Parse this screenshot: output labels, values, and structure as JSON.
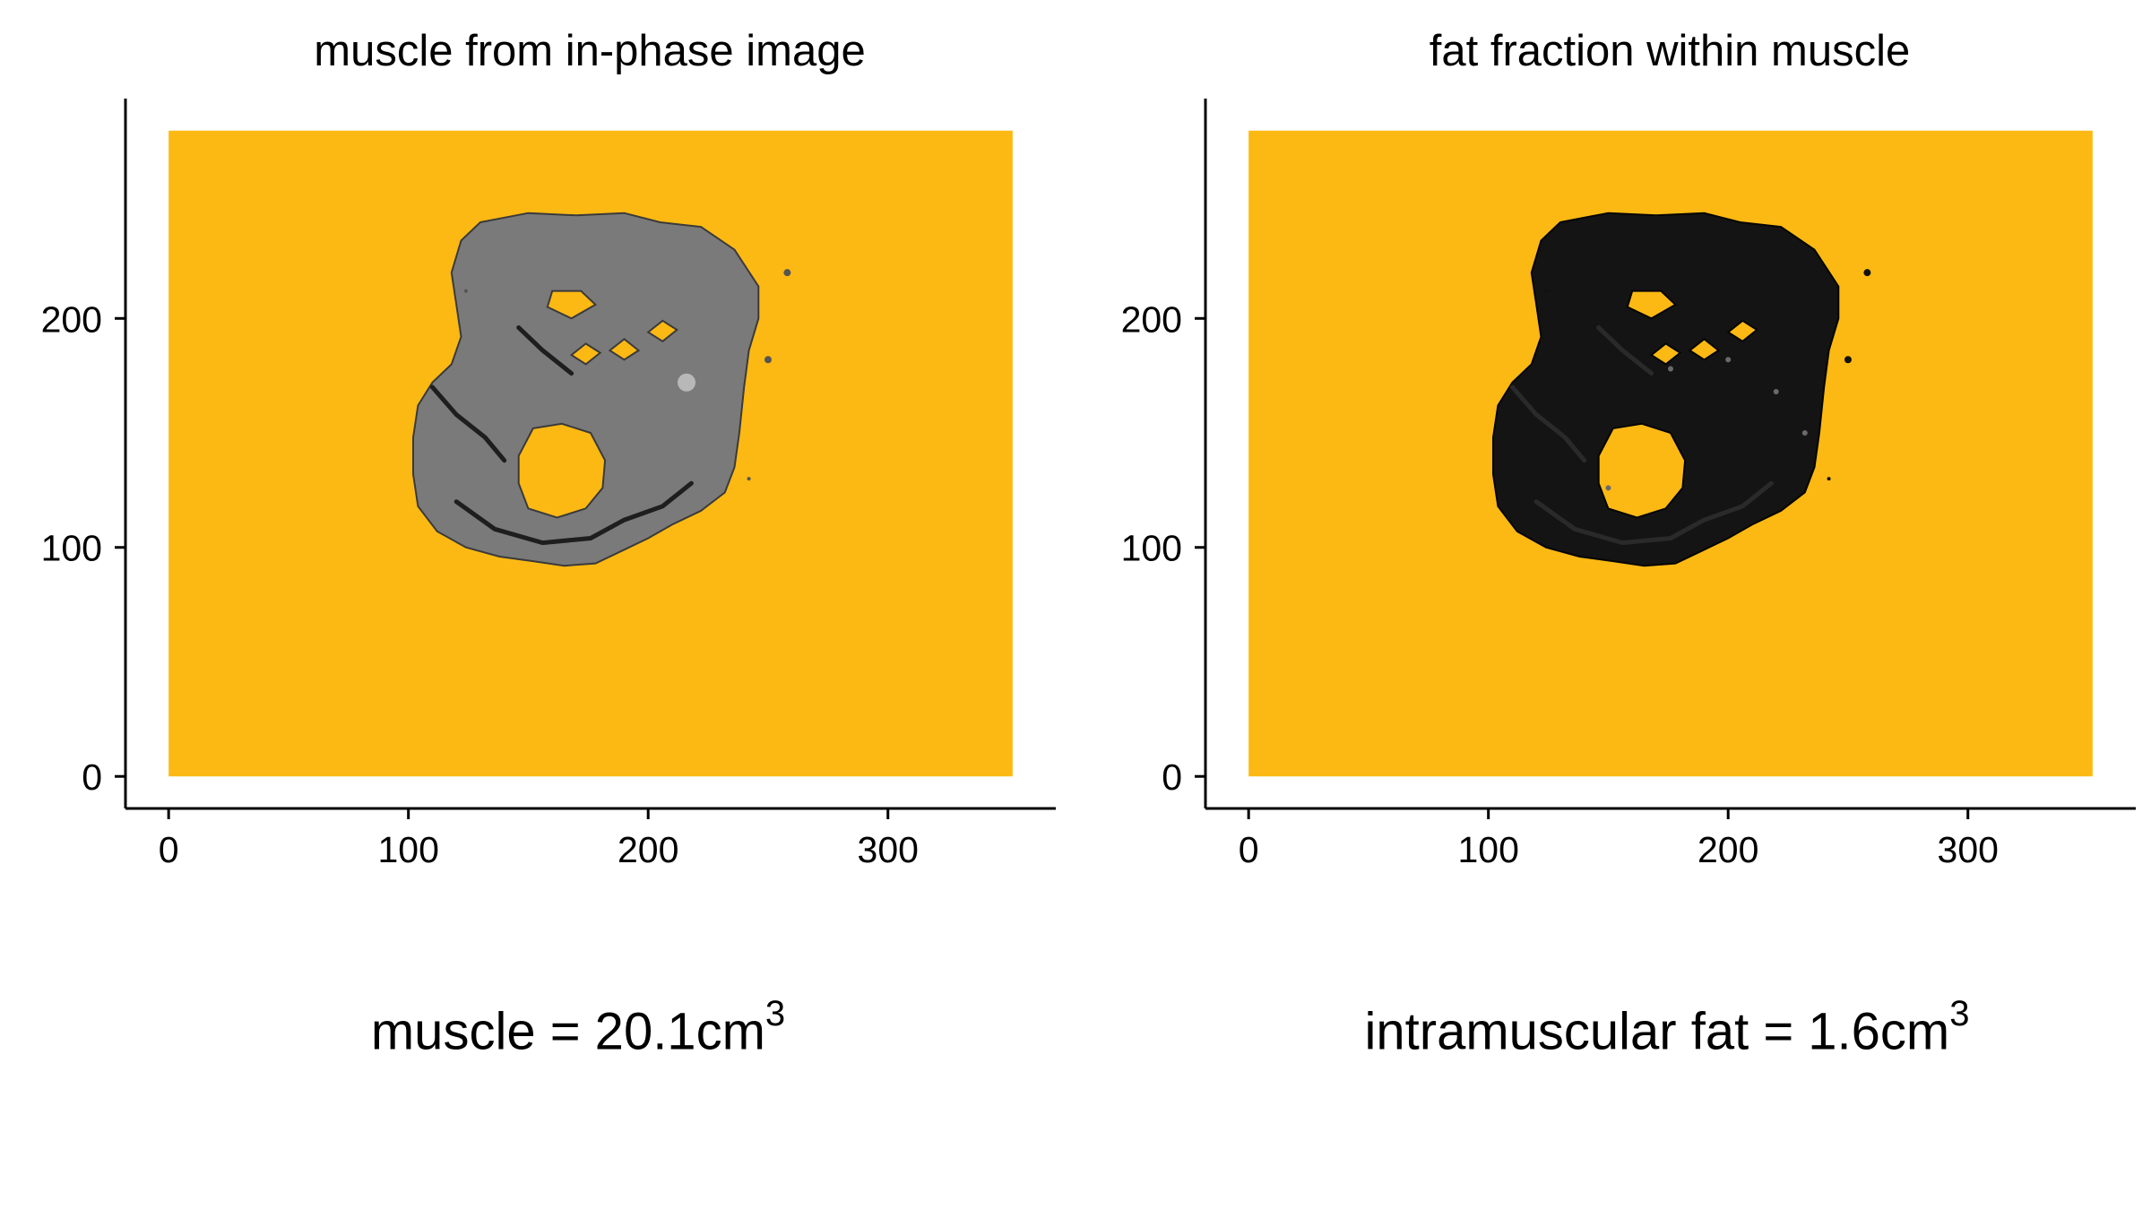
{
  "chart_data": [
    {
      "type": "heatmap",
      "title": "muscle from in-phase image",
      "xlabel": "",
      "ylabel": "",
      "xlim": [
        -18,
        370
      ],
      "ylim": [
        -14,
        296
      ],
      "x_ticks": [
        "0",
        "100",
        "200",
        "300"
      ],
      "y_ticks": [
        "0",
        "100",
        "200"
      ],
      "image_extent_x": [
        0,
        352
      ],
      "image_extent_y": [
        0,
        282
      ],
      "background_color": "#FDB913",
      "content": "grayscale MRI cross-section of thigh muscle, mid-gray intensity",
      "tissue_tone": "#7a7a7a",
      "caption_text": "muscle = 20.1cm",
      "caption_superscript": "3"
    },
    {
      "type": "heatmap",
      "title": "fat fraction within muscle",
      "xlabel": "",
      "ylabel": "",
      "xlim": [
        -18,
        370
      ],
      "ylim": [
        -14,
        296
      ],
      "x_ticks": [
        "0",
        "100",
        "200",
        "300"
      ],
      "y_ticks": [
        "0",
        "100",
        "200"
      ],
      "image_extent_x": [
        0,
        352
      ],
      "image_extent_y": [
        0,
        282
      ],
      "background_color": "#FDB913",
      "content": "fat fraction map of thigh muscle, mostly near-black",
      "tissue_tone": "#141414",
      "caption_text": "intramuscular fat = 1.6cm",
      "caption_superscript": "3"
    }
  ]
}
